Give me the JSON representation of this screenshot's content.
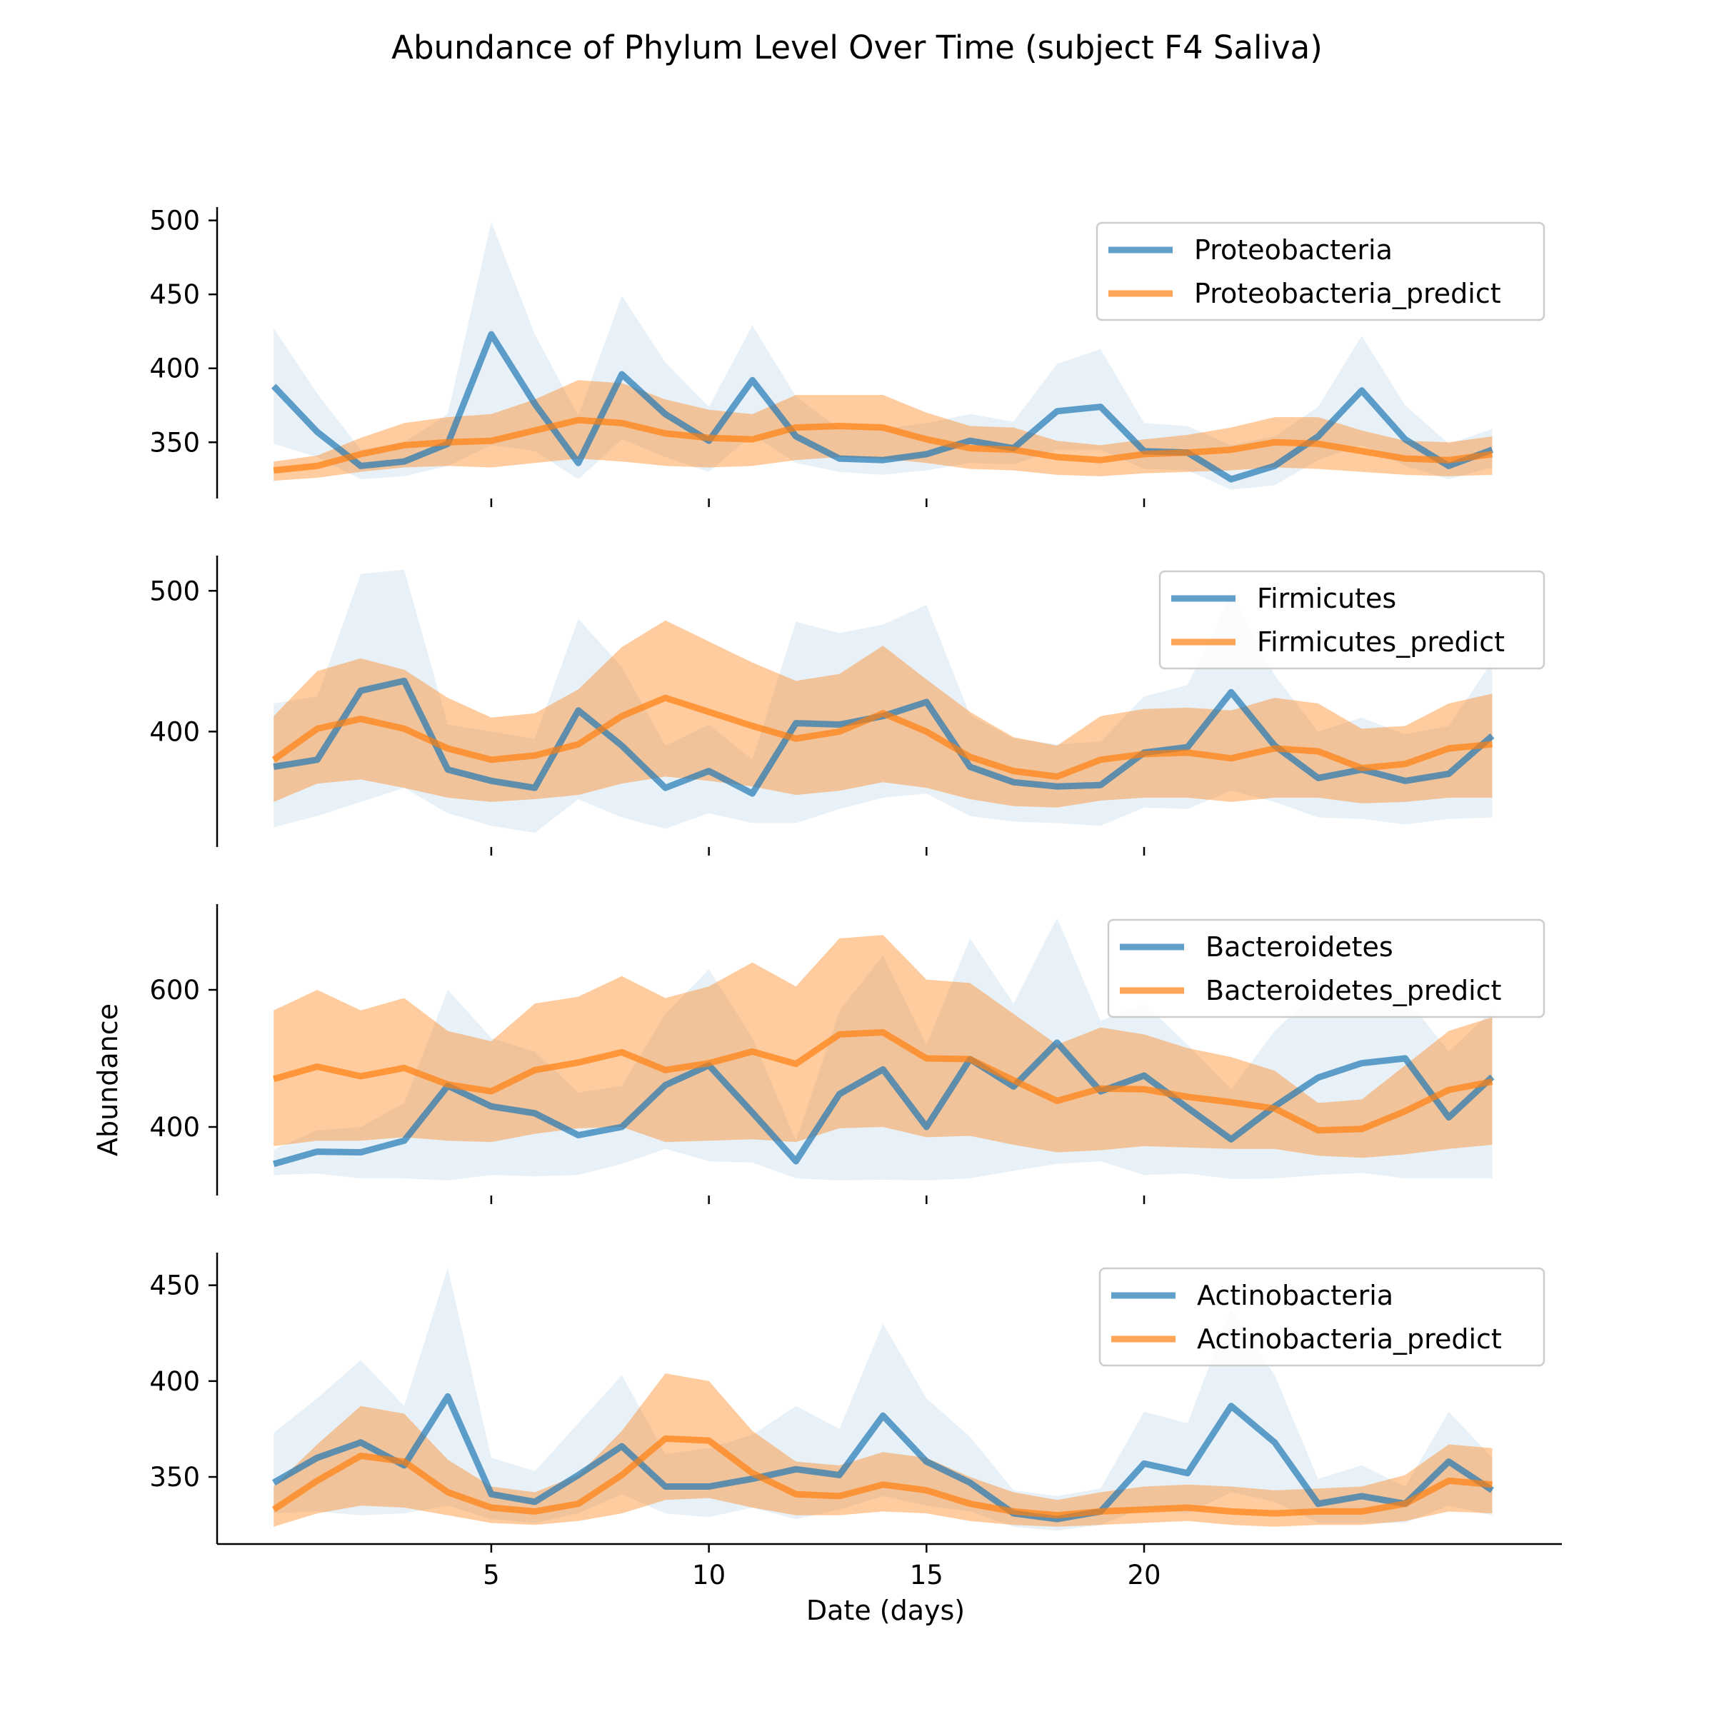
{
  "figure": {
    "title": "Abundance of Phylum Level Over Time (subject F4 Saliva)",
    "xlabel": "Date (days)",
    "ylabel": "Abundance"
  },
  "colors": {
    "actual": "#1f77b4",
    "predict": "#ff7f0e",
    "axis": "#000000",
    "legend_border": "#cccccc"
  },
  "chart_data": [
    {
      "type": "line",
      "title": "",
      "xlabel": "",
      "ylabel": "",
      "xlim": [
        -1.3,
        29.6
      ],
      "ylim": [
        312,
        509
      ],
      "yticks": [
        350,
        400,
        450,
        500
      ],
      "xticks": [
        5,
        10,
        15,
        20
      ],
      "show_xtick_labels": false,
      "legend_position": "top-right",
      "grid": false,
      "series": [
        {
          "name": "Proteobacteria",
          "role": "actual",
          "x": [
            0,
            1,
            2,
            3,
            4,
            5,
            6,
            7,
            8,
            9,
            10,
            11,
            12,
            13,
            14,
            15,
            16,
            17,
            18,
            19,
            20,
            21,
            22,
            23,
            24,
            25,
            26,
            27,
            28
          ],
          "values": [
            388,
            357,
            334,
            337,
            349,
            423,
            376,
            336,
            396,
            369,
            351,
            392,
            354,
            339,
            338,
            342,
            351,
            346,
            371,
            374,
            344,
            343,
            325,
            334,
            354,
            385,
            352,
            334,
            345
          ],
          "upper": [
            427,
            383,
            345,
            350,
            369,
            499,
            423,
            368,
            449,
            404,
            374,
            429,
            381,
            359,
            359,
            363,
            369,
            364,
            403,
            413,
            363,
            361,
            348,
            354,
            374,
            422,
            375,
            349,
            359
          ],
          "lower": [
            349,
            340,
            325,
            327,
            334,
            348,
            344,
            325,
            352,
            340,
            330,
            355,
            336,
            330,
            328,
            331,
            336,
            335,
            345,
            345,
            332,
            331,
            318,
            321,
            338,
            348,
            334,
            325,
            333
          ]
        },
        {
          "name": "Proteobacteria_predict",
          "role": "predict",
          "x": [
            0,
            1,
            2,
            3,
            4,
            5,
            6,
            7,
            8,
            9,
            10,
            11,
            12,
            13,
            14,
            15,
            16,
            17,
            18,
            19,
            20,
            21,
            22,
            23,
            24,
            25,
            26,
            27,
            28
          ],
          "values": [
            331,
            334,
            342,
            348,
            350,
            351,
            358,
            365,
            363,
            356,
            353,
            352,
            360,
            361,
            360,
            352,
            346,
            345,
            340,
            338,
            342,
            343,
            345,
            350,
            349,
            344,
            339,
            338,
            342
          ],
          "upper": [
            337,
            341,
            353,
            363,
            367,
            369,
            379,
            392,
            390,
            379,
            372,
            369,
            382,
            382,
            382,
            370,
            361,
            360,
            351,
            348,
            352,
            355,
            360,
            367,
            367,
            358,
            351,
            350,
            354
          ],
          "lower": [
            324,
            326,
            330,
            333,
            334,
            333,
            336,
            339,
            337,
            334,
            333,
            334,
            338,
            340,
            339,
            336,
            332,
            331,
            328,
            327,
            329,
            330,
            331,
            333,
            332,
            330,
            328,
            327,
            328
          ]
        }
      ]
    },
    {
      "type": "line",
      "title": "",
      "xlabel": "",
      "ylabel": "",
      "xlim": [
        -1.3,
        29.6
      ],
      "ylim": [
        318,
        525
      ],
      "yticks": [
        400,
        500
      ],
      "xticks": [
        5,
        10,
        15,
        20
      ],
      "show_xtick_labels": false,
      "legend_position": "top-right",
      "grid": false,
      "series": [
        {
          "name": "Firmicutes",
          "role": "actual",
          "x": [
            0,
            1,
            2,
            3,
            4,
            5,
            6,
            7,
            8,
            9,
            10,
            11,
            12,
            13,
            14,
            15,
            16,
            17,
            18,
            19,
            20,
            21,
            22,
            23,
            24,
            25,
            26,
            27,
            28
          ],
          "values": [
            375,
            380,
            429,
            436,
            373,
            365,
            360,
            415,
            390,
            360,
            372,
            356,
            406,
            405,
            411,
            421,
            375,
            364,
            361,
            362,
            385,
            389,
            428,
            390,
            367,
            373,
            365,
            370,
            397
          ],
          "upper": [
            420,
            425,
            512,
            515,
            405,
            400,
            395,
            480,
            446,
            390,
            405,
            380,
            478,
            470,
            476,
            490,
            412,
            395,
            391,
            393,
            425,
            433,
            498,
            440,
            400,
            410,
            398,
            404,
            450
          ],
          "lower": [
            332,
            340,
            350,
            360,
            342,
            333,
            328,
            352,
            339,
            331,
            342,
            335,
            335,
            345,
            353,
            356,
            340,
            336,
            335,
            333,
            346,
            345,
            358,
            350,
            339,
            338,
            334,
            338,
            339
          ]
        },
        {
          "name": "Firmicutes_predict",
          "role": "predict",
          "x": [
            0,
            1,
            2,
            3,
            4,
            5,
            6,
            7,
            8,
            9,
            10,
            11,
            12,
            13,
            14,
            15,
            16,
            17,
            18,
            19,
            20,
            21,
            22,
            23,
            24,
            25,
            26,
            27,
            28
          ],
          "values": [
            380,
            402,
            409,
            402,
            388,
            380,
            383,
            391,
            411,
            424,
            414,
            404,
            395,
            400,
            413,
            400,
            382,
            372,
            368,
            380,
            384,
            385,
            381,
            388,
            386,
            374,
            377,
            388,
            391
          ],
          "upper": [
            411,
            443,
            452,
            444,
            424,
            410,
            413,
            430,
            460,
            479,
            464,
            449,
            436,
            441,
            461,
            437,
            414,
            396,
            390,
            411,
            416,
            417,
            415,
            424,
            420,
            402,
            404,
            420,
            427
          ],
          "lower": [
            350,
            363,
            366,
            360,
            353,
            350,
            352,
            355,
            363,
            368,
            365,
            361,
            355,
            358,
            364,
            360,
            352,
            347,
            346,
            351,
            353,
            353,
            350,
            353,
            353,
            349,
            350,
            353,
            353
          ]
        }
      ]
    },
    {
      "type": "line",
      "title": "",
      "xlabel": "",
      "ylabel": "",
      "xlim": [
        -1.3,
        29.6
      ],
      "ylim": [
        300,
        725
      ],
      "yticks": [
        400,
        600
      ],
      "xticks": [
        5,
        10,
        15,
        20
      ],
      "show_xtick_labels": false,
      "legend_position": "top-right",
      "grid": false,
      "series": [
        {
          "name": "Bacteroidetes",
          "role": "actual",
          "x": [
            0,
            1,
            2,
            3,
            4,
            5,
            6,
            7,
            8,
            9,
            10,
            11,
            12,
            13,
            14,
            15,
            16,
            17,
            18,
            19,
            20,
            21,
            22,
            23,
            24,
            25,
            26,
            27,
            28
          ],
          "values": [
            346,
            364,
            363,
            380,
            460,
            430,
            420,
            388,
            400,
            461,
            490,
            421,
            350,
            448,
            484,
            400,
            499,
            459,
            523,
            452,
            475,
            428,
            382,
            430,
            472,
            493,
            500,
            414,
            473
          ],
          "upper": [
            367,
            395,
            400,
            435,
            600,
            530,
            510,
            450,
            460,
            565,
            630,
            530,
            380,
            570,
            650,
            520,
            675,
            580,
            705,
            555,
            580,
            520,
            455,
            540,
            600,
            600,
            590,
            510,
            570
          ],
          "lower": [
            330,
            332,
            325,
            325,
            322,
            330,
            328,
            330,
            346,
            368,
            350,
            348,
            325,
            322,
            323,
            322,
            325,
            336,
            346,
            350,
            330,
            332,
            324,
            325,
            330,
            333,
            325,
            325,
            325
          ]
        },
        {
          "name": "Bacteroidetes_predict",
          "role": "predict",
          "x": [
            0,
            1,
            2,
            3,
            4,
            5,
            6,
            7,
            8,
            9,
            10,
            11,
            12,
            13,
            14,
            15,
            16,
            17,
            18,
            19,
            20,
            21,
            22,
            23,
            24,
            25,
            26,
            27,
            28
          ],
          "values": [
            470,
            488,
            474,
            486,
            462,
            452,
            483,
            494,
            509,
            483,
            493,
            510,
            492,
            535,
            538,
            500,
            499,
            468,
            438,
            456,
            455,
            444,
            436,
            427,
            395,
            397,
            423,
            454,
            466
          ],
          "upper": [
            570,
            600,
            570,
            588,
            540,
            525,
            580,
            590,
            620,
            588,
            605,
            640,
            605,
            675,
            680,
            615,
            610,
            565,
            520,
            545,
            535,
            515,
            502,
            482,
            435,
            440,
            490,
            540,
            560
          ],
          "lower": [
            372,
            380,
            380,
            385,
            380,
            378,
            390,
            398,
            400,
            378,
            380,
            382,
            378,
            398,
            400,
            385,
            387,
            374,
            363,
            366,
            372,
            370,
            368,
            368,
            358,
            355,
            360,
            368,
            374
          ]
        }
      ]
    },
    {
      "type": "line",
      "title": "",
      "xlabel": "Date (days)",
      "ylabel": "",
      "xlim": [
        -1.3,
        29.6
      ],
      "ylim": [
        315,
        467
      ],
      "yticks": [
        350,
        400,
        450
      ],
      "xticks": [
        5,
        10,
        15,
        20
      ],
      "show_xtick_labels": true,
      "legend_position": "top-right",
      "grid": false,
      "series": [
        {
          "name": "Actinobacteria",
          "role": "actual",
          "x": [
            0,
            1,
            2,
            3,
            4,
            5,
            6,
            7,
            8,
            9,
            10,
            11,
            12,
            13,
            14,
            15,
            16,
            17,
            18,
            19,
            20,
            21,
            22,
            23,
            24,
            25,
            26,
            27,
            28
          ],
          "values": [
            347,
            360,
            368,
            356,
            392,
            341,
            337,
            351,
            366,
            345,
            345,
            349,
            354,
            351,
            382,
            358,
            347,
            331,
            328,
            332,
            357,
            352,
            387,
            368,
            336,
            340,
            336,
            358,
            343
          ],
          "upper": [
            373,
            391,
            411,
            387,
            459,
            360,
            353,
            378,
            403,
            362,
            365,
            372,
            387,
            375,
            430,
            391,
            371,
            343,
            340,
            344,
            384,
            378,
            438,
            403,
            349,
            356,
            345,
            384,
            360
          ],
          "lower": [
            331,
            332,
            330,
            331,
            335,
            328,
            326,
            331,
            341,
            331,
            329,
            334,
            328,
            333,
            340,
            335,
            332,
            324,
            322,
            325,
            334,
            331,
            342,
            337,
            326,
            326,
            326,
            335,
            330
          ]
        },
        {
          "name": "Actinobacteria_predict",
          "role": "predict",
          "x": [
            0,
            1,
            2,
            3,
            4,
            5,
            6,
            7,
            8,
            9,
            10,
            11,
            12,
            13,
            14,
            15,
            16,
            17,
            18,
            19,
            20,
            21,
            22,
            23,
            24,
            25,
            26,
            27,
            28
          ],
          "values": [
            333,
            348,
            361,
            358,
            342,
            334,
            332,
            336,
            351,
            370,
            369,
            352,
            341,
            340,
            346,
            343,
            336,
            332,
            330,
            332,
            333,
            334,
            332,
            331,
            332,
            332,
            336,
            348,
            346
          ],
          "upper": [
            345,
            367,
            387,
            383,
            359,
            345,
            342,
            351,
            374,
            404,
            400,
            374,
            358,
            356,
            363,
            360,
            350,
            342,
            338,
            342,
            345,
            346,
            345,
            343,
            344,
            345,
            351,
            367,
            365
          ],
          "lower": [
            324,
            331,
            335,
            334,
            330,
            326,
            325,
            327,
            331,
            338,
            339,
            334,
            330,
            330,
            332,
            331,
            327,
            325,
            324,
            325,
            326,
            327,
            325,
            324,
            325,
            325,
            327,
            332,
            331
          ]
        }
      ]
    }
  ]
}
